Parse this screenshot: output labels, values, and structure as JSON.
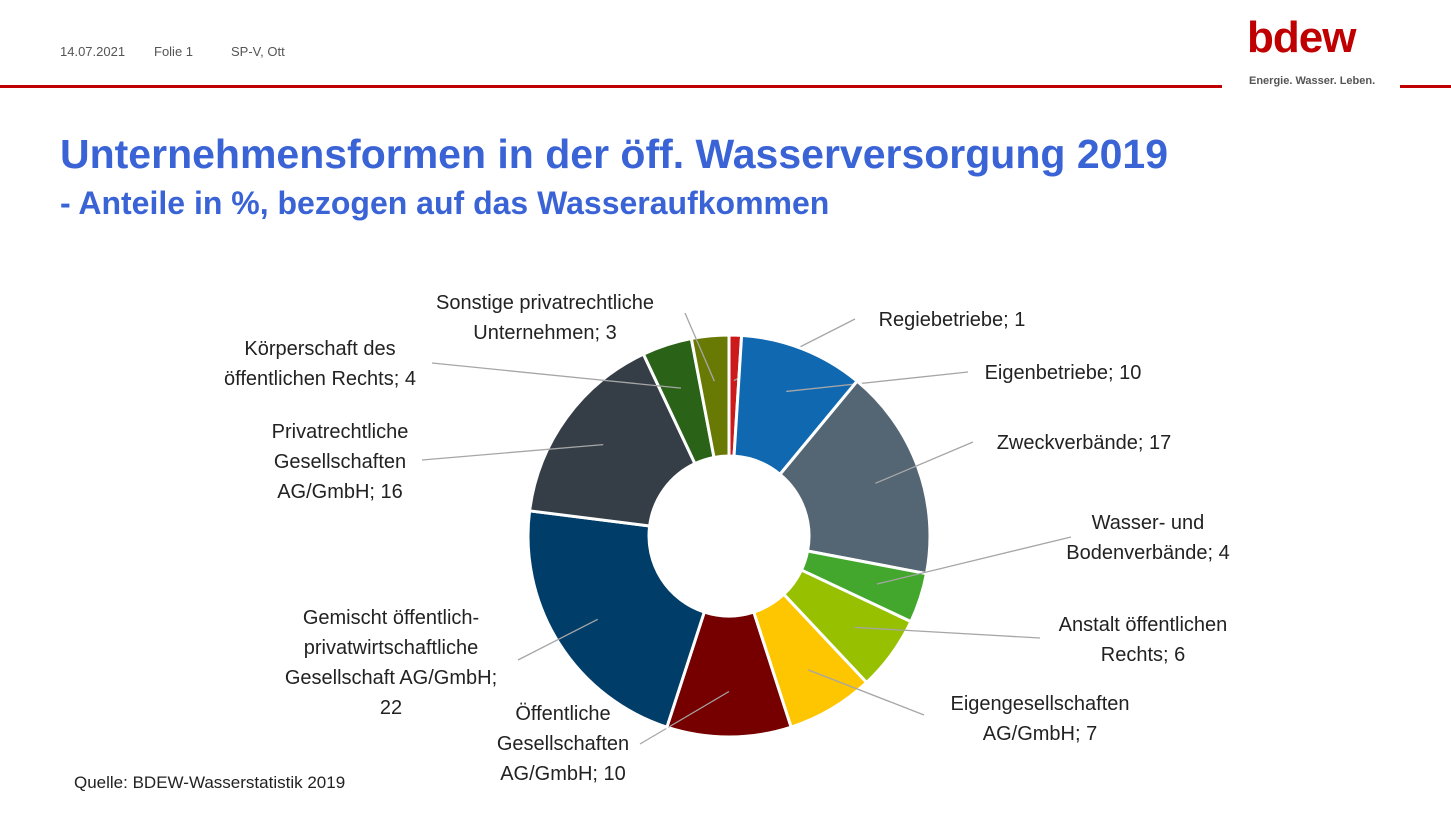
{
  "header": {
    "date": "14.07.2021",
    "slide": "Folie 1",
    "author": "SP-V, Ott",
    "logo_word": "bdew",
    "logo_tagline": "Energie. Wasser. Leben."
  },
  "title": "Unternehmensformen in der öff. Wasserversorgung 2019",
  "subtitle": "- Anteile in %, bezogen auf das Wasseraufkommen",
  "source": "Quelle: BDEW-Wasserstatistik 2019",
  "colors": {
    "title": "#3a63d6",
    "accent_red": "#c00000"
  },
  "chart_data": {
    "type": "pie",
    "variant": "donut",
    "slices": [
      {
        "label": [
          "Regiebetriebe; 1"
        ],
        "value": 1,
        "color": "#cc1a1a"
      },
      {
        "label": [
          "Eigenbetriebe; 10"
        ],
        "value": 10,
        "color": "#0f68b0"
      },
      {
        "label": [
          "Zweckverbände; 17"
        ],
        "value": 17,
        "color": "#546573"
      },
      {
        "label": [
          "Wasser- und",
          "Bodenverbände; 4"
        ],
        "value": 4,
        "color": "#42a72c"
      },
      {
        "label": [
          "Anstalt öffentlichen",
          "Rechts; 6"
        ],
        "value": 6,
        "color": "#97c000"
      },
      {
        "label": [
          "Eigengesellschaften",
          "AG/GmbH; 7"
        ],
        "value": 7,
        "color": "#fec600"
      },
      {
        "label": [
          "Öffentliche",
          "Gesellschaften",
          "AG/GmbH; 10"
        ],
        "value": 10,
        "color": "#760000"
      },
      {
        "label": [
          "Gemischt öffentlich-",
          "privatwirtschaftliche",
          "Gesellschaft AG/GmbH;",
          "22"
        ],
        "value": 22,
        "color": "#003d68"
      },
      {
        "label": [
          "Privatrechtliche",
          "Gesellschaften",
          "AG/GmbH; 16"
        ],
        "value": 16,
        "color": "#353e47"
      },
      {
        "label": [
          "Körperschaft des",
          "öffentlichen Rechts; 4"
        ],
        "value": 4,
        "color": "#2a6318"
      },
      {
        "label": [
          "Sonstige privatrechtliche",
          "Unternehmen; 3"
        ],
        "value": 3,
        "color": "#687a04"
      }
    ]
  }
}
